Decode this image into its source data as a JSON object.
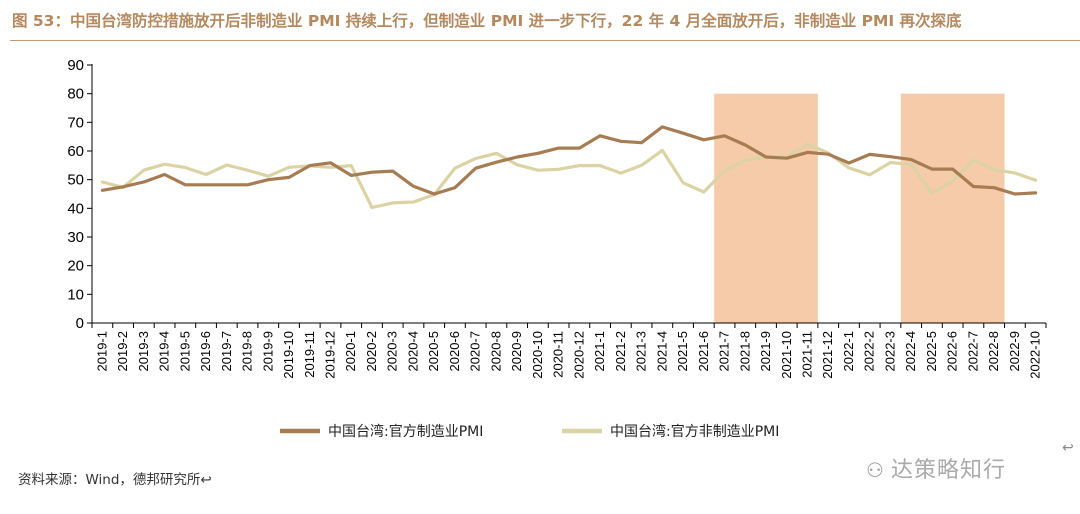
{
  "title": "图 53：中国台湾防控措施放开后非制造业 PMI 持续上行，但制造业 PMI 进一步下行，22 年 4 月全面放开后，非制造业 PMI 再次探底",
  "source_text": "资料来源：Wind，德邦研究所↩",
  "watermark_text": "达策略知行",
  "return_mark": "↩",
  "colors": {
    "manufacturing": "#a67c52",
    "non_manufacturing": "#dcd3a4",
    "shade": "#f6cba9",
    "title": "#b5895f"
  },
  "chart_data": {
    "type": "line",
    "title": "",
    "xlabel": "",
    "ylabel": "",
    "ylim": [
      0,
      90
    ],
    "yticks": [
      0,
      10,
      20,
      30,
      40,
      50,
      60,
      70,
      80,
      90
    ],
    "grid": false,
    "legend": "bottom",
    "categories": [
      "2019-1",
      "2019-2",
      "2019-3",
      "2019-4",
      "2019-5",
      "2019-6",
      "2019-7",
      "2019-8",
      "2019-9",
      "2019-10",
      "2019-11",
      "2019-12",
      "2020-1",
      "2020-2",
      "2020-3",
      "2020-4",
      "2020-5",
      "2020-6",
      "2020-7",
      "2020-8",
      "2020-9",
      "2020-10",
      "2020-11",
      "2020-12",
      "2021-1",
      "2021-2",
      "2021-3",
      "2021-4",
      "2021-5",
      "2021-6",
      "2021-7",
      "2021-8",
      "2021-9",
      "2021-10",
      "2021-11",
      "2021-12",
      "2022-1",
      "2022-2",
      "2022-3",
      "2022-4",
      "2022-5",
      "2022-6",
      "2022-7",
      "2022-8",
      "2022-9",
      "2022-10"
    ],
    "shaded_ranges": [
      {
        "from": "2021-7",
        "to": "2021-11",
        "value": 80
      },
      {
        "from": "2022-4",
        "to": "2022-8",
        "value": 80
      }
    ],
    "series": [
      {
        "name": "中国台湾:官方制造业PMI",
        "color": "#a67c52",
        "values": [
          46.3,
          47.5,
          49.2,
          51.8,
          48.2,
          48.2,
          48.2,
          48.2,
          50.0,
          50.8,
          54.9,
          55.9,
          51.5,
          52.6,
          53.0,
          47.7,
          45.0,
          47.2,
          54.0,
          56.1,
          57.9,
          59.2,
          61.0,
          61.0,
          65.3,
          63.4,
          62.9,
          68.4,
          66.2,
          63.9,
          65.3,
          62.1,
          57.9,
          57.5,
          59.5,
          58.9,
          55.8,
          58.8,
          58.0,
          57.0,
          53.7,
          53.7,
          47.6,
          47.2,
          45.0,
          45.4
        ]
      },
      {
        "name": "中国台湾:官方非制造业PMI",
        "color": "#dcd3a4",
        "values": [
          49.2,
          47.3,
          53.3,
          55.4,
          54.2,
          51.8,
          55.1,
          53.3,
          51.2,
          54.3,
          54.8,
          54.3,
          54.9,
          40.3,
          41.9,
          42.2,
          44.8,
          54.0,
          57.4,
          59.2,
          55.2,
          53.3,
          53.6,
          54.9,
          54.9,
          52.3,
          55.0,
          60.2,
          48.9,
          45.7,
          53.1,
          56.8,
          57.9,
          58.0,
          62.4,
          59.3,
          54.1,
          51.7,
          56.0,
          55.3,
          45.3,
          49.5,
          56.8,
          53.5,
          52.3,
          49.8
        ]
      }
    ]
  }
}
